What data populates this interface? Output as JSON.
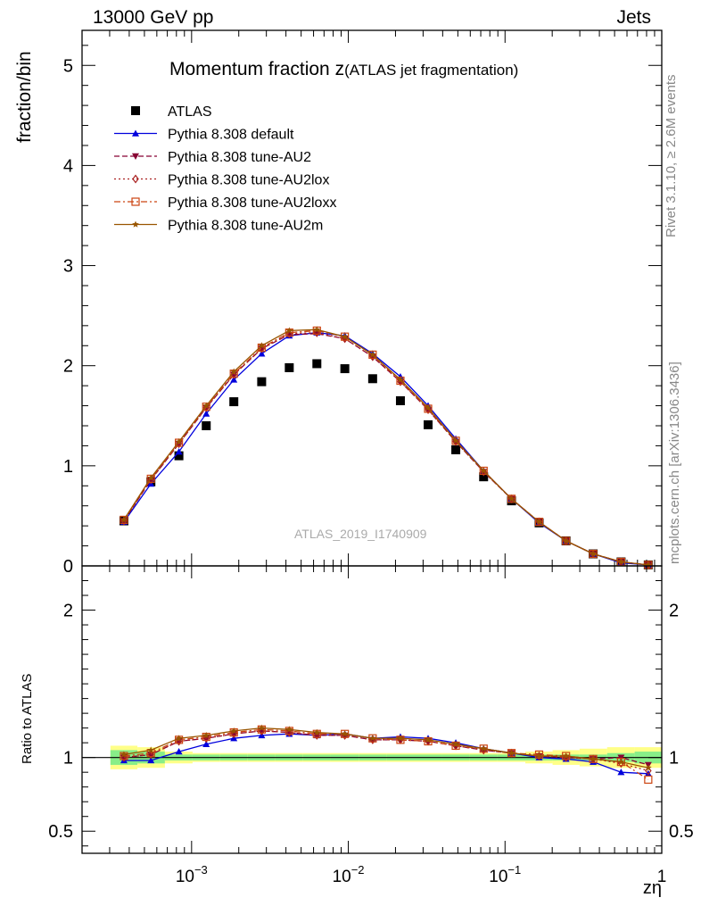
{
  "header": {
    "energy_label": "13000 GeV pp",
    "process_label": "Jets"
  },
  "side_labels": {
    "rivet": "Rivet 3.1.10, ≥ 2.6M events",
    "mcplots": "mcplots.cern.ch [arXiv:1306.3436]"
  },
  "chart_data": [
    {
      "type": "line",
      "panel": "main",
      "title": "Momentum fraction z",
      "title_sub": "(ATLAS jet fragmentation)",
      "watermark": "ATLAS_2019_I1740909",
      "xlabel": "zη",
      "ylabel": "fraction/bin",
      "x_scale": "log",
      "xlim": [
        0.0002,
        1
      ],
      "ylim": [
        0,
        5.35
      ],
      "y_ticks": [
        0,
        1,
        2,
        3,
        4,
        5
      ],
      "y_tick_labels": [
        "0",
        "1",
        "2",
        "3",
        "4",
        "5"
      ],
      "x_tick_labels": [
        "10^-3",
        "10^-2",
        "10^-1",
        "1"
      ],
      "grid": false,
      "legend_position": "top-left",
      "x": [
        0.00037,
        0.00055,
        0.00083,
        0.00124,
        0.00186,
        0.0028,
        0.0042,
        0.0063,
        0.0095,
        0.0143,
        0.0215,
        0.0323,
        0.0485,
        0.073,
        0.11,
        0.165,
        0.245,
        0.365,
        0.55,
        0.82
      ],
      "series": [
        {
          "name": "ATLAS",
          "style": "data",
          "color": "#000000",
          "marker": "square",
          "values": [
            0.45,
            0.84,
            1.1,
            1.4,
            1.64,
            1.84,
            1.98,
            2.02,
            1.97,
            1.87,
            1.65,
            1.41,
            1.16,
            0.89,
            0.65,
            0.43,
            0.25,
            0.12,
            0.04,
            0.01
          ]
        },
        {
          "name": "Pythia 8.308 default",
          "style": "solid",
          "color": "#0000dd",
          "marker": "triangle-up",
          "values": [
            0.44,
            0.82,
            1.14,
            1.52,
            1.86,
            2.12,
            2.3,
            2.33,
            2.3,
            2.12,
            1.89,
            1.6,
            1.27,
            0.95,
            0.67,
            0.43,
            0.25,
            0.12,
            0.03,
            0.01
          ]
        },
        {
          "name": "Pythia 8.308 tune-AU2",
          "style": "dashed",
          "color": "#880033",
          "marker": "triangle-down",
          "values": [
            0.45,
            0.86,
            1.22,
            1.58,
            1.91,
            2.17,
            2.31,
            2.32,
            2.27,
            2.09,
            1.84,
            1.56,
            1.24,
            0.94,
            0.67,
            0.44,
            0.25,
            0.12,
            0.04,
            0.01
          ]
        },
        {
          "name": "Pythia 8.308 tune-AU2lox",
          "style": "dotted",
          "color": "#aa2222",
          "marker": "diamond-open",
          "values": [
            0.45,
            0.86,
            1.22,
            1.58,
            1.91,
            2.17,
            2.32,
            2.33,
            2.27,
            2.09,
            1.84,
            1.56,
            1.24,
            0.94,
            0.67,
            0.44,
            0.25,
            0.12,
            0.04,
            0.01
          ]
        },
        {
          "name": "Pythia 8.308 tune-AU2loxx",
          "style": "dashdot",
          "color": "#cc4411",
          "marker": "square-open",
          "values": [
            0.46,
            0.87,
            1.23,
            1.59,
            1.92,
            2.18,
            2.33,
            2.35,
            2.29,
            2.11,
            1.85,
            1.57,
            1.25,
            0.95,
            0.67,
            0.44,
            0.25,
            0.12,
            0.04,
            0.01
          ]
        },
        {
          "name": "Pythia 8.308 tune-AU2m",
          "style": "solid",
          "color": "#995500",
          "marker": "star",
          "values": [
            0.46,
            0.88,
            1.24,
            1.6,
            1.94,
            2.2,
            2.35,
            2.36,
            2.29,
            2.11,
            1.86,
            1.58,
            1.25,
            0.95,
            0.67,
            0.44,
            0.25,
            0.12,
            0.04,
            0.01
          ]
        }
      ]
    },
    {
      "type": "line",
      "panel": "ratio",
      "ylabel": "Ratio to ATLAS",
      "xlabel": "zη",
      "x_scale": "log",
      "xlim": [
        0.0002,
        1
      ],
      "ylim": [
        0.35,
        2.3
      ],
      "y_ticks": [
        0.5,
        1,
        2
      ],
      "y_tick_labels": [
        "0.5",
        "1",
        "2"
      ],
      "x": [
        0.00037,
        0.00055,
        0.00083,
        0.00124,
        0.00186,
        0.0028,
        0.0042,
        0.0063,
        0.0095,
        0.0143,
        0.0215,
        0.0323,
        0.0485,
        0.073,
        0.11,
        0.165,
        0.245,
        0.365,
        0.55,
        0.82
      ],
      "band_inner": [
        0.05,
        0.04,
        0.02,
        0.02,
        0.02,
        0.02,
        0.02,
        0.02,
        0.02,
        0.02,
        0.02,
        0.02,
        0.02,
        0.02,
        0.02,
        0.02,
        0.02,
        0.02,
        0.03,
        0.04
      ],
      "band_outer": [
        0.08,
        0.07,
        0.04,
        0.03,
        0.03,
        0.03,
        0.03,
        0.03,
        0.03,
        0.03,
        0.03,
        0.03,
        0.03,
        0.03,
        0.03,
        0.04,
        0.05,
        0.06,
        0.07,
        0.07
      ],
      "band_colors": {
        "outer": "#ffff88",
        "inner": "#88ee88"
      },
      "series": [
        {
          "name": "Pythia 8.308 default",
          "color": "#0000dd",
          "style": "solid",
          "marker": "triangle-up",
          "values": [
            0.98,
            0.98,
            1.04,
            1.09,
            1.13,
            1.15,
            1.16,
            1.15,
            1.16,
            1.13,
            1.14,
            1.13,
            1.1,
            1.06,
            1.03,
            1.0,
            0.99,
            0.97,
            0.9,
            0.89
          ]
        },
        {
          "name": "Pythia 8.308 tune-AU2",
          "color": "#880033",
          "style": "dashed",
          "marker": "triangle-down",
          "values": [
            1.0,
            1.02,
            1.11,
            1.13,
            1.16,
            1.18,
            1.17,
            1.15,
            1.15,
            1.12,
            1.12,
            1.11,
            1.08,
            1.05,
            1.03,
            1.01,
            1.0,
            0.99,
            1.0,
            0.95
          ]
        },
        {
          "name": "Pythia 8.308 tune-AU2lox",
          "color": "#aa2222",
          "style": "dotted",
          "marker": "diamond-open",
          "values": [
            1.0,
            1.02,
            1.11,
            1.13,
            1.16,
            1.18,
            1.17,
            1.15,
            1.15,
            1.12,
            1.12,
            1.11,
            1.08,
            1.05,
            1.03,
            1.01,
            1.0,
            0.99,
            0.96,
            0.91
          ]
        },
        {
          "name": "Pythia 8.308 tune-AU2loxx",
          "color": "#cc4411",
          "style": "dashdot",
          "marker": "square-open",
          "values": [
            1.01,
            1.03,
            1.12,
            1.14,
            1.17,
            1.19,
            1.18,
            1.16,
            1.16,
            1.13,
            1.12,
            1.11,
            1.08,
            1.06,
            1.03,
            1.02,
            1.01,
            0.99,
            0.97,
            0.85
          ]
        },
        {
          "name": "Pythia 8.308 tune-AU2m",
          "color": "#995500",
          "style": "solid",
          "marker": "star",
          "values": [
            1.02,
            1.05,
            1.13,
            1.15,
            1.18,
            1.2,
            1.19,
            1.17,
            1.16,
            1.13,
            1.13,
            1.12,
            1.09,
            1.06,
            1.03,
            1.01,
            1.01,
            0.99,
            0.97,
            0.93
          ]
        }
      ]
    }
  ]
}
